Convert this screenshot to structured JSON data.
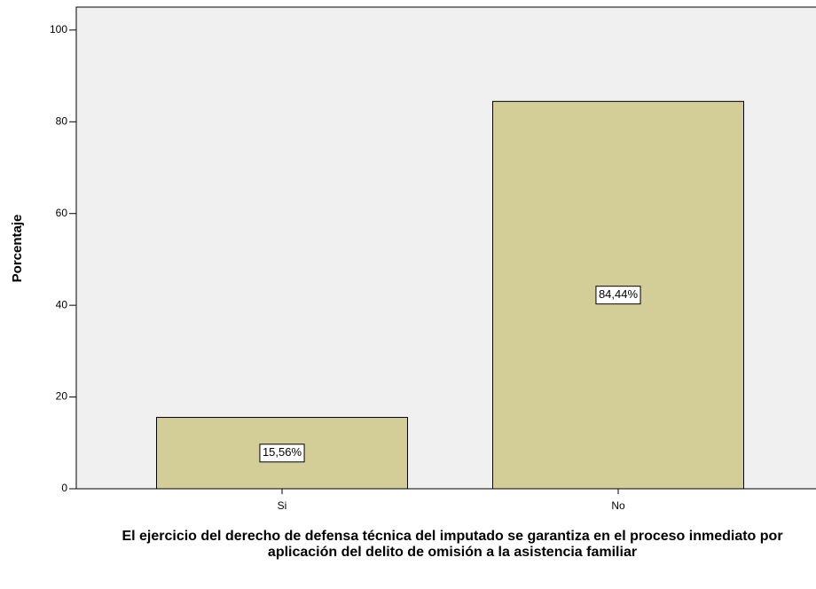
{
  "chart_data": {
    "type": "bar",
    "y_label": "Porcentaje",
    "x_label": "El ejercicio del derecho de defensa técnica del imputado se garantiza en el proceso inmediato por aplicación del delito de omisión a la asistencia familiar",
    "categories": [
      "Si",
      "No"
    ],
    "values": [
      15.56,
      84.44
    ],
    "value_labels": [
      "15,56%",
      "84,44%"
    ],
    "color": "#d3cd98",
    "ylim": [
      0,
      105
    ],
    "yticks": [
      0,
      20,
      40,
      60,
      80,
      100
    ]
  }
}
